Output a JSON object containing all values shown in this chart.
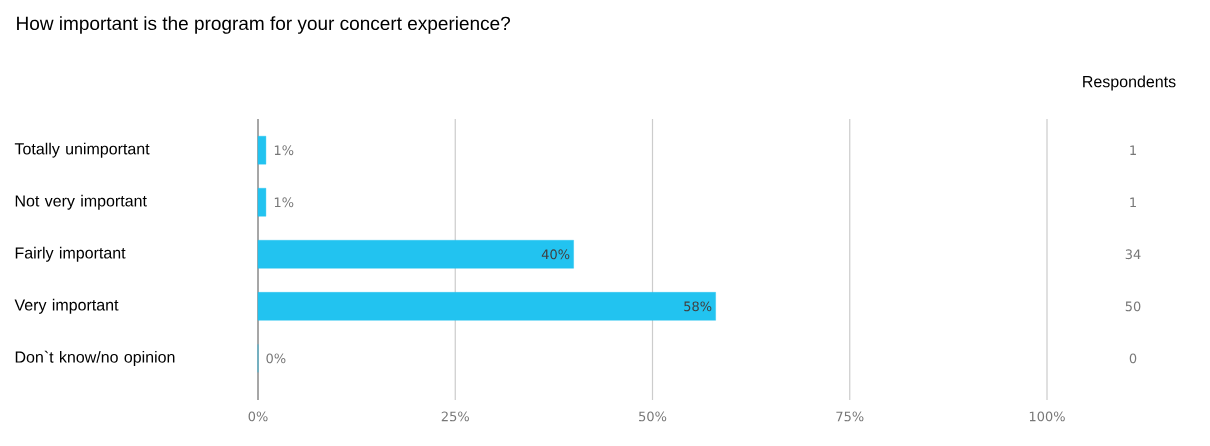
{
  "chart_data": {
    "type": "bar",
    "orientation": "horizontal",
    "title": "How important is the program for your concert experience?",
    "categories": [
      "Totally unimportant",
      "Not very important",
      "Fairly important",
      "Very important",
      "Don`t know/no opinion"
    ],
    "values": [
      1,
      1,
      40,
      58,
      0
    ],
    "value_labels": [
      "1%",
      "1%",
      "40%",
      "58%",
      "0%"
    ],
    "color": "#22c3f0",
    "xlim": [
      0,
      100
    ],
    "xticks": [
      {
        "value": 0,
        "label": "0%"
      },
      {
        "value": 25,
        "label": "25%"
      },
      {
        "value": 50,
        "label": "50%"
      },
      {
        "value": 75,
        "label": "75%"
      },
      {
        "value": 100,
        "label": "100%"
      }
    ],
    "grid": "x",
    "annotations": [
      "Respondents",
      "1",
      "1",
      "34",
      "50",
      "0"
    ]
  }
}
